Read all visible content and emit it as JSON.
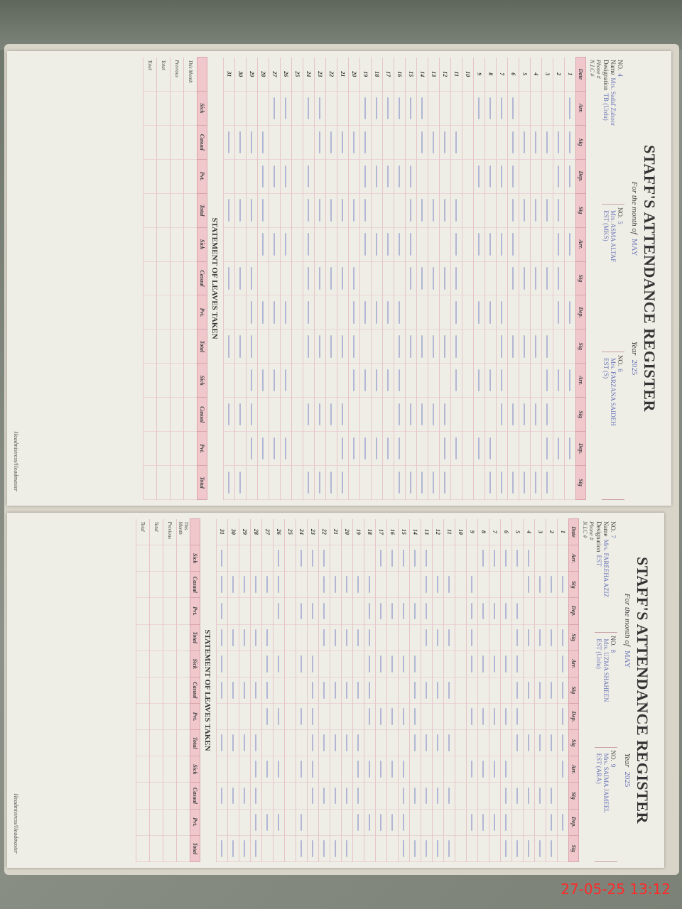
{
  "timestamp": "27-05-25  13:12",
  "pages": [
    {
      "title": "STAFF'S ATTENDANCE REGISTER",
      "month_label": "For the month of",
      "month": "MAY",
      "year_label": "Year",
      "year": "2025",
      "staff": [
        {
          "no_label": "NO.",
          "no": "4",
          "name_label": "Name",
          "name": "Mrs. Sadaf Zahoor",
          "desig_label": "Designation",
          "designation": "TB (Urdu)"
        },
        {
          "no_label": "NO.",
          "no": "5",
          "name_label": "",
          "name": "Mrs. ASMA ALTAF",
          "desig_label": "",
          "designation": "EST (MKS)"
        },
        {
          "no_label": "NO.",
          "no": "6",
          "name_label": "",
          "name": "Mrs. FARZANA SAIDEH",
          "desig_label": "",
          "designation": "EST (S)"
        }
      ],
      "phone_label": "Phone #",
      "nic_label": "N.I.C #",
      "columns": [
        "Date",
        "Arr.",
        "Sig",
        "Dep.",
        "Sig",
        "Arr.",
        "Sig",
        "Dep.",
        "Sig",
        "Arr.",
        "Sig",
        "Dep.",
        "Sig"
      ],
      "statement_title": "STATEMENT OF LEAVES TAKEN",
      "statement_columns": [
        "",
        "Sick",
        "Casual",
        "Pvt.",
        "Total",
        "Sick",
        "Casual",
        "Pvt.",
        "Total",
        "Sick",
        "Casual",
        "Pvt.",
        "Total"
      ],
      "statement_rows": [
        "This Month",
        "Previous",
        "Total",
        "Total"
      ],
      "footer": "Headmistress/Headmaster"
    },
    {
      "title": "STAFF'S ATTENDANCE REGISTER",
      "month_label": "For the month of",
      "month": "MAY",
      "year_label": "Year",
      "year": "2025",
      "staff": [
        {
          "no_label": "NO.",
          "no": "7",
          "name_label": "Name",
          "name": "Mrs. FAREEHA AZIZ",
          "desig_label": "Designation",
          "designation": "EST"
        },
        {
          "no_label": "NO.",
          "no": "8",
          "name_label": "",
          "name": "Mrs. UZMA SHAHEEN",
          "desig_label": "",
          "designation": "EST (Urdu)"
        },
        {
          "no_label": "NO.",
          "no": "9",
          "name_label": "",
          "name": "Mrs. SAIMA JAMEEL",
          "desig_label": "",
          "designation": "EST (ARA)"
        }
      ],
      "phone_label": "Phone #",
      "nic_label": "N.I.C #",
      "columns": [
        "Date",
        "Arr.",
        "Sig",
        "Dep.",
        "Sig",
        "Arr.",
        "Sig",
        "Dep.",
        "Sig",
        "Arr.",
        "Sig",
        "Dep.",
        "Sig"
      ],
      "statement_title": "STATEMENT OF LEAVES TAKEN",
      "statement_columns": [
        "",
        "Sick",
        "Casual",
        "Pvt.",
        "Total",
        "Sick",
        "Casual",
        "Pvt.",
        "Total",
        "Sick",
        "Casual",
        "Pvt.",
        "Total"
      ],
      "statement_rows": [
        "This Month",
        "Previous",
        "Total",
        "Total"
      ],
      "footer": "Headmistress/Headmaster"
    }
  ],
  "dates": [
    "1",
    "2",
    "3",
    "4",
    "5",
    "6",
    "7",
    "8",
    "9",
    "10",
    "11",
    "12",
    "13",
    "14",
    "15",
    "16",
    "17",
    "18",
    "19",
    "20",
    "21",
    "22",
    "23",
    "24",
    "25",
    "26",
    "27",
    "28",
    "29",
    "30",
    "31"
  ],
  "colors": {
    "header_pink": "#f0c8cc",
    "ink_blue": "#6d78b8",
    "timestamp_red": "#ff2a2a"
  }
}
